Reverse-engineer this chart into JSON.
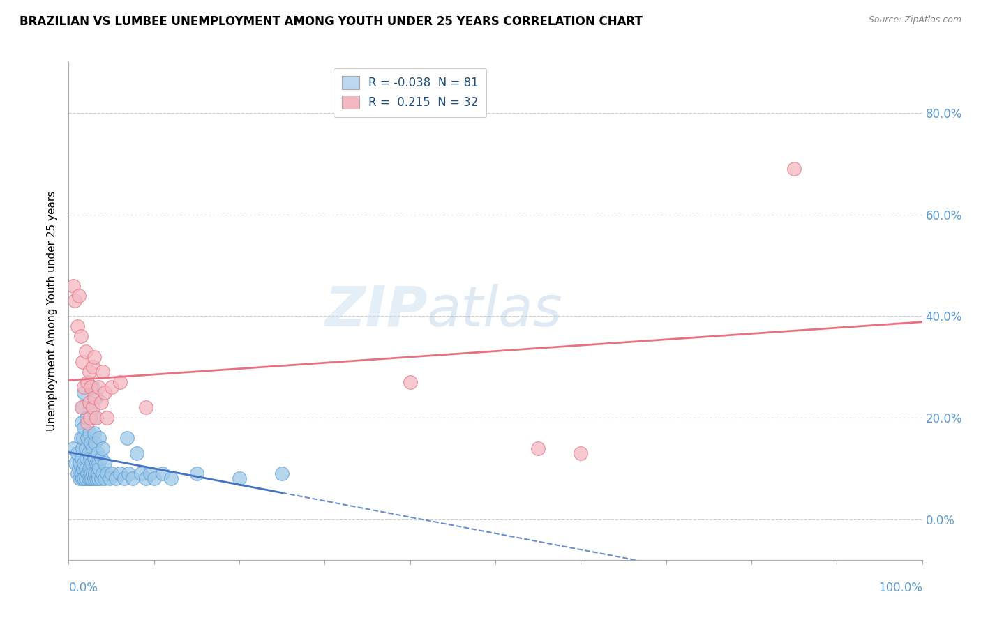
{
  "title": "BRAZILIAN VS LUMBEE UNEMPLOYMENT AMONG YOUTH UNDER 25 YEARS CORRELATION CHART",
  "source": "Source: ZipAtlas.com",
  "ylabel": "Unemployment Among Youth under 25 years",
  "yticks": [
    "0.0%",
    "20.0%",
    "40.0%",
    "60.0%",
    "80.0%"
  ],
  "ytick_vals": [
    0.0,
    0.2,
    0.4,
    0.6,
    0.8
  ],
  "xlim": [
    0.0,
    1.0
  ],
  "ylim": [
    -0.08,
    0.9
  ],
  "legend_entries": [
    {
      "label_r": "R = ",
      "label_rv": "-0.038",
      "label_n": "  N = ",
      "label_nv": "81",
      "color": "#bdd7ee"
    },
    {
      "label_r": "R =  ",
      "label_rv": "0.215",
      "label_n": "  N = ",
      "label_nv": "32",
      "color": "#f4b8c1"
    }
  ],
  "watermark_zip": "ZIP",
  "watermark_atlas": "atlas",
  "brazilian_color": "#9ec9e8",
  "brazilian_edge": "#5b9bd5",
  "lumbee_color": "#f4b8c1",
  "lumbee_edge": "#e87080",
  "brazilian_line_color": "#4472c4",
  "lumbee_line_color": "#e87080",
  "brazilian_points": [
    [
      0.005,
      0.14
    ],
    [
      0.008,
      0.11
    ],
    [
      0.01,
      0.09
    ],
    [
      0.01,
      0.13
    ],
    [
      0.012,
      0.1
    ],
    [
      0.013,
      0.08
    ],
    [
      0.013,
      0.11
    ],
    [
      0.014,
      0.16
    ],
    [
      0.015,
      0.09
    ],
    [
      0.015,
      0.12
    ],
    [
      0.015,
      0.19
    ],
    [
      0.016,
      0.08
    ],
    [
      0.016,
      0.14
    ],
    [
      0.016,
      0.22
    ],
    [
      0.017,
      0.1
    ],
    [
      0.017,
      0.16
    ],
    [
      0.018,
      0.08
    ],
    [
      0.018,
      0.11
    ],
    [
      0.018,
      0.18
    ],
    [
      0.018,
      0.25
    ],
    [
      0.02,
      0.1
    ],
    [
      0.02,
      0.08
    ],
    [
      0.02,
      0.14
    ],
    [
      0.021,
      0.12
    ],
    [
      0.021,
      0.2
    ],
    [
      0.022,
      0.09
    ],
    [
      0.022,
      0.16
    ],
    [
      0.023,
      0.08
    ],
    [
      0.023,
      0.13
    ],
    [
      0.024,
      0.1
    ],
    [
      0.024,
      0.17
    ],
    [
      0.025,
      0.08
    ],
    [
      0.025,
      0.12
    ],
    [
      0.025,
      0.22
    ],
    [
      0.026,
      0.09
    ],
    [
      0.026,
      0.15
    ],
    [
      0.027,
      0.08
    ],
    [
      0.027,
      0.11
    ],
    [
      0.028,
      0.09
    ],
    [
      0.028,
      0.14
    ],
    [
      0.028,
      0.26
    ],
    [
      0.03,
      0.08
    ],
    [
      0.03,
      0.12
    ],
    [
      0.03,
      0.17
    ],
    [
      0.03,
      0.2
    ],
    [
      0.031,
      0.09
    ],
    [
      0.031,
      0.15
    ],
    [
      0.032,
      0.08
    ],
    [
      0.032,
      0.11
    ],
    [
      0.032,
      0.24
    ],
    [
      0.034,
      0.09
    ],
    [
      0.034,
      0.13
    ],
    [
      0.035,
      0.08
    ],
    [
      0.035,
      0.11
    ],
    [
      0.036,
      0.1
    ],
    [
      0.036,
      0.16
    ],
    [
      0.038,
      0.08
    ],
    [
      0.038,
      0.12
    ],
    [
      0.04,
      0.09
    ],
    [
      0.04,
      0.14
    ],
    [
      0.042,
      0.08
    ],
    [
      0.042,
      0.11
    ],
    [
      0.045,
      0.09
    ],
    [
      0.048,
      0.08
    ],
    [
      0.05,
      0.09
    ],
    [
      0.055,
      0.08
    ],
    [
      0.06,
      0.09
    ],
    [
      0.065,
      0.08
    ],
    [
      0.068,
      0.16
    ],
    [
      0.07,
      0.09
    ],
    [
      0.075,
      0.08
    ],
    [
      0.08,
      0.13
    ],
    [
      0.085,
      0.09
    ],
    [
      0.09,
      0.08
    ],
    [
      0.095,
      0.09
    ],
    [
      0.1,
      0.08
    ],
    [
      0.11,
      0.09
    ],
    [
      0.12,
      0.08
    ],
    [
      0.15,
      0.09
    ],
    [
      0.2,
      0.08
    ],
    [
      0.25,
      0.09
    ]
  ],
  "lumbee_points": [
    [
      0.005,
      0.46
    ],
    [
      0.007,
      0.43
    ],
    [
      0.01,
      0.38
    ],
    [
      0.012,
      0.44
    ],
    [
      0.014,
      0.36
    ],
    [
      0.015,
      0.22
    ],
    [
      0.016,
      0.31
    ],
    [
      0.018,
      0.26
    ],
    [
      0.02,
      0.33
    ],
    [
      0.022,
      0.19
    ],
    [
      0.022,
      0.27
    ],
    [
      0.024,
      0.23
    ],
    [
      0.024,
      0.29
    ],
    [
      0.025,
      0.2
    ],
    [
      0.026,
      0.26
    ],
    [
      0.028,
      0.22
    ],
    [
      0.028,
      0.3
    ],
    [
      0.03,
      0.24
    ],
    [
      0.03,
      0.32
    ],
    [
      0.032,
      0.2
    ],
    [
      0.035,
      0.26
    ],
    [
      0.038,
      0.23
    ],
    [
      0.04,
      0.29
    ],
    [
      0.042,
      0.25
    ],
    [
      0.045,
      0.2
    ],
    [
      0.05,
      0.26
    ],
    [
      0.06,
      0.27
    ],
    [
      0.09,
      0.22
    ],
    [
      0.4,
      0.27
    ],
    [
      0.55,
      0.14
    ],
    [
      0.6,
      0.13
    ],
    [
      0.85,
      0.69
    ]
  ]
}
